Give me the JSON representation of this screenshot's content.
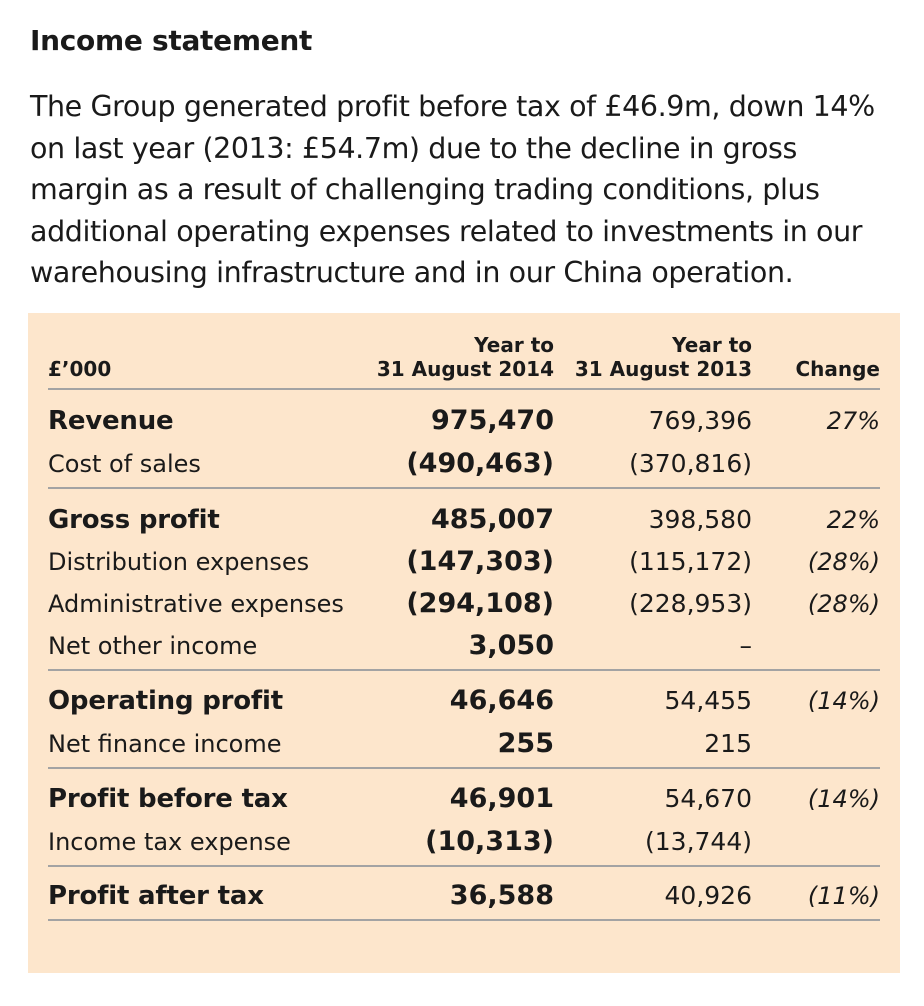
{
  "heading": "Income statement",
  "intro": "The Group generated profit before tax of £46.9m, down 14% on last year (2013: £54.7m) due to the decline in gross margin as a result of challenging trading conditions, plus additional operating expenses related to investments in our warehousing infrastructure and in our China operation.",
  "table": {
    "unit_label": "£’000",
    "col_2014_line1": "Year to",
    "col_2014_line2": "31 August 2014",
    "col_2013_line1": "Year to",
    "col_2013_line2": "31 August 2013",
    "col_change": "Change",
    "rows": [
      {
        "label": "Revenue",
        "y2014": "975,470",
        "y2013": "769,396",
        "change": "27%"
      },
      {
        "label": "Cost of sales",
        "y2014": "(490,463)",
        "y2013": "(370,816)",
        "change": ""
      },
      {
        "label": "Gross profit",
        "y2014": "485,007",
        "y2013": "398,580",
        "change": "22%"
      },
      {
        "label": "Distribution expenses",
        "y2014": "(147,303)",
        "y2013": "(115,172)",
        "change": "(28%)"
      },
      {
        "label": "Administrative expenses",
        "y2014": "(294,108)",
        "y2013": "(228,953)",
        "change": "(28%)"
      },
      {
        "label": "Net other income",
        "y2014": "3,050",
        "y2013": "–",
        "change": ""
      },
      {
        "label": "Operating profit",
        "y2014": "46,646",
        "y2013": "54,455",
        "change": "(14%)"
      },
      {
        "label": "Net finance income",
        "y2014": "255",
        "y2013": "215",
        "change": ""
      },
      {
        "label": "Profit before tax",
        "y2014": "46,901",
        "y2013": "54,670",
        "change": "(14%)"
      },
      {
        "label": "Income tax expense",
        "y2014": "(10,313)",
        "y2013": "(13,744)",
        "change": ""
      },
      {
        "label": "Profit after tax",
        "y2014": "36,588",
        "y2013": "40,926",
        "change": "(11%)"
      }
    ]
  },
  "colors": {
    "panel_background": "#fde6cc",
    "rule": "#a3a3a3",
    "text": "#1a1a1a"
  }
}
